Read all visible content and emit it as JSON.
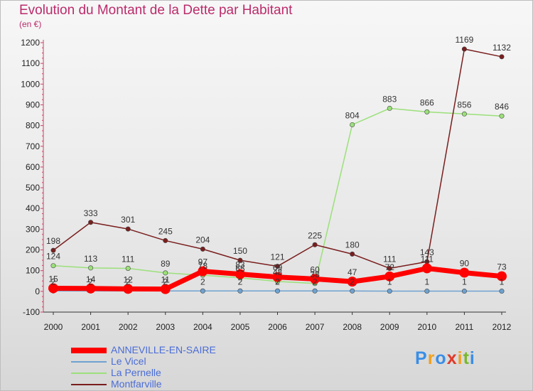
{
  "header": {
    "title": "Evolution du Montant de la Dette par Habitant",
    "subtitle": "(en €)"
  },
  "logo": {
    "text": "Proxiti",
    "letters": [
      "P",
      "r",
      "o",
      "x",
      "i",
      "t",
      "i"
    ],
    "colors": [
      "#3a8ee6",
      "#f0a020",
      "#3a8ee6",
      "#e03a2a",
      "#f0a020",
      "#7ab830",
      "#3a8ee6"
    ]
  },
  "chart_data": {
    "type": "line",
    "title": "Evolution du Montant de la Dette par Habitant",
    "subtitle": "(en €)",
    "xlabel": "",
    "ylabel": "",
    "x": [
      "2000",
      "2001",
      "2002",
      "2003",
      "2004",
      "2005",
      "2006",
      "2007",
      "2008",
      "2009",
      "2010",
      "2011",
      "2012"
    ],
    "ylim": [
      -100,
      1200
    ],
    "yticks": [
      -100,
      0,
      100,
      200,
      300,
      400,
      500,
      600,
      700,
      800,
      900,
      1000,
      1100,
      1200
    ],
    "grid": false,
    "legend_position": "bottom",
    "series": [
      {
        "name": "ANNEVILLE-EN-SAIRE",
        "color": "#ff0000",
        "style": "thick",
        "values": [
          15,
          14,
          12,
          11,
          97,
          83,
          69,
          60,
          47,
          72,
          111,
          90,
          73
        ]
      },
      {
        "name": "Le Vicel",
        "color": "#6ea2d0",
        "style": "thin",
        "values": [
          2,
          2,
          2,
          2,
          2,
          2,
          2,
          2,
          2,
          1,
          1,
          1,
          1
        ]
      },
      {
        "name": "La Pernelle",
        "color": "#9be07a",
        "style": "thin",
        "values": [
          124,
          113,
          111,
          89,
          78,
          65,
          48,
          38,
          804,
          883,
          866,
          856,
          846
        ]
      },
      {
        "name": "Montfarville",
        "color": "#7a1e1e",
        "style": "thin",
        "values": [
          198,
          333,
          301,
          245,
          204,
          150,
          121,
          225,
          180,
          111,
          143,
          1169,
          1132
        ]
      }
    ]
  }
}
